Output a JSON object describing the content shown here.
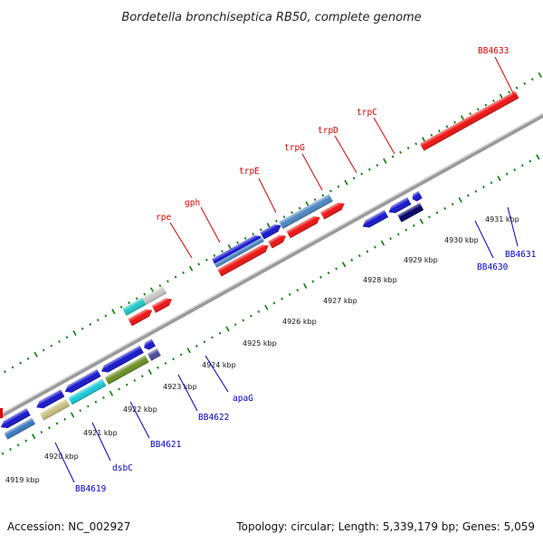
{
  "title": "Bordetella bronchiseptica RB50, complete genome",
  "footer": {
    "accession": "Accession: NC_002927",
    "summary": "Topology: circular; Length: 5,339,179 bp; Genes: 5,059"
  },
  "colors": {
    "forward_label": "#dd0000",
    "reverse_label": "#0000cc",
    "backbone": "#9a9a9a",
    "tick": "#008000"
  },
  "ticks": [
    "4919 kbp",
    "4920 kbp",
    "4921 kbp",
    "4922 kbp",
    "4923 kbp",
    "4924 kbp",
    "4925 kbp",
    "4926 kbp",
    "4927 kbp",
    "4928 kbp",
    "4929 kbp",
    "4930 kbp",
    "4931 kbp"
  ],
  "forward_labels": [
    "rpe",
    "gph",
    "trpE",
    "trpG",
    "trpD",
    "trpC",
    "BB4633"
  ],
  "reverse_labels": [
    "BB4619",
    "dsbC",
    "BB4621",
    "BB4622",
    "apaG",
    "BB4630",
    "BB4631"
  ]
}
